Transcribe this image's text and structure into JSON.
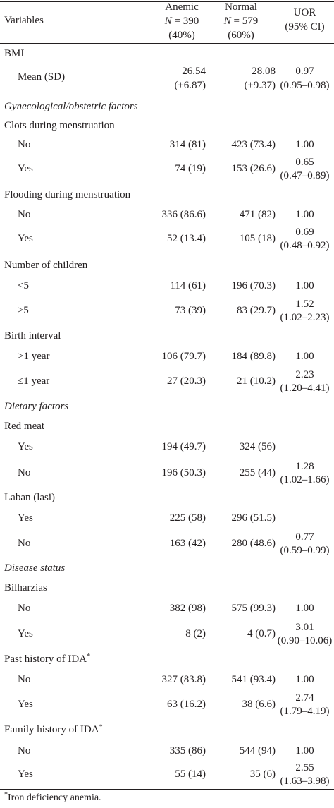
{
  "header": {
    "variables": "Variables",
    "anemic": {
      "line1": "Anemic",
      "n_label": "N",
      "n_value": "= 390",
      "pct": "(40%)"
    },
    "normal": {
      "line1": "Normal",
      "n_label": "N",
      "n_value": "= 579",
      "pct": "(60%)"
    },
    "uor": {
      "line1": "UOR",
      "line2": "(95% CI)"
    }
  },
  "rows": [
    {
      "label": "BMI",
      "anemic": "",
      "normal": "",
      "uor": ""
    },
    {
      "label": "Mean (SD)",
      "anemic": "26.54",
      "anemic2": "(±6.87)",
      "normal": "28.08",
      "normal2": "(±9.37)",
      "uor": "0.97",
      "uor2": "(0.95–0.98)"
    },
    {
      "label": "Gynecological/obstetric factors",
      "anemic": "",
      "normal": "",
      "uor": ""
    },
    {
      "label": "Clots during menstruation",
      "anemic": "",
      "normal": "",
      "uor": ""
    },
    {
      "label": "No",
      "anemic": "314 (81)",
      "normal": "423 (73.4)",
      "uor": "1.00"
    },
    {
      "label": "Yes",
      "anemic": "74 (19)",
      "normal": "153 (26.6)",
      "uor": "0.65",
      "uor2": "(0.47–0.89)"
    },
    {
      "label": "Flooding during menstruation",
      "anemic": "",
      "normal": "",
      "uor": ""
    },
    {
      "label": "No",
      "anemic": "336 (86.6)",
      "normal": "471 (82)",
      "uor": "1.00"
    },
    {
      "label": "Yes",
      "anemic": "52 (13.4)",
      "normal": "105 (18)",
      "uor": "0.69",
      "uor2": "(0.48–0.92)"
    },
    {
      "label": "Number of children",
      "anemic": "",
      "normal": "",
      "uor": ""
    },
    {
      "label": "<5",
      "anemic": "114 (61)",
      "normal": "196 (70.3)",
      "uor": "1.00"
    },
    {
      "label": "≥5",
      "anemic": "73 (39)",
      "normal": "83 (29.7)",
      "uor": "1.52",
      "uor2": "(1.02–2.23)"
    },
    {
      "label": "Birth interval",
      "anemic": "",
      "normal": "",
      "uor": ""
    },
    {
      "label": ">1 year",
      "anemic": "106 (79.7)",
      "normal": "184 (89.8)",
      "uor": "1.00"
    },
    {
      "label": "≤1 year",
      "anemic": "27 (20.3)",
      "normal": "21 (10.2)",
      "uor": "2.23",
      "uor2": "(1.20–4.41)"
    },
    {
      "label": "Dietary factors",
      "anemic": "",
      "normal": "",
      "uor": ""
    },
    {
      "label": "Red meat",
      "anemic": "",
      "normal": "",
      "uor": ""
    },
    {
      "label": "Yes",
      "anemic": "194 (49.7)",
      "normal": "324 (56)",
      "uor": ""
    },
    {
      "label": "No",
      "anemic": "196 (50.3)",
      "normal": "255 (44)",
      "uor": "1.28",
      "uor2": "(1.02–1.66)"
    },
    {
      "label": "Laban (lasi)",
      "anemic": "",
      "normal": "",
      "uor": ""
    },
    {
      "label": "Yes",
      "anemic": "225 (58)",
      "normal": "296 (51.5)",
      "uor": ""
    },
    {
      "label": "No",
      "anemic": "163 (42)",
      "normal": "280 (48.6)",
      "uor": "0.77",
      "uor2": "(0.59–0.99)"
    },
    {
      "label": "Disease status",
      "anemic": "",
      "normal": "",
      "uor": ""
    },
    {
      "label": "Bilharzias",
      "anemic": "",
      "normal": "",
      "uor": ""
    },
    {
      "label": "No",
      "anemic": "382 (98)",
      "normal": "575 (99.3)",
      "uor": "1.00"
    },
    {
      "label": "Yes",
      "anemic": "8 (2)",
      "normal": "4 (0.7)",
      "uor": "3.01",
      "uor2": "(0.90–10.06)"
    },
    {
      "label": "Past history of IDA",
      "sup": "*",
      "anemic": "",
      "normal": "",
      "uor": ""
    },
    {
      "label": "No",
      "anemic": "327 (83.8)",
      "normal": "541 (93.4)",
      "uor": "1.00"
    },
    {
      "label": "Yes",
      "anemic": "63 (16.2)",
      "normal": "38 (6.6)",
      "uor": "2.74",
      "uor2": "(1.79–4.19)"
    },
    {
      "label": "Family history of IDA",
      "sup": "*",
      "anemic": "",
      "normal": "",
      "uor": ""
    },
    {
      "label": "No",
      "anemic": "335 (86)",
      "normal": "544 (94)",
      "uor": "1.00"
    },
    {
      "label": "Yes",
      "anemic": "55 (14)",
      "normal": "35 (6)",
      "uor": "2.55",
      "uor2": "(1.63–3.98)"
    }
  ],
  "footnote": {
    "mark": "*",
    "text": "Iron deficiency anemia."
  }
}
